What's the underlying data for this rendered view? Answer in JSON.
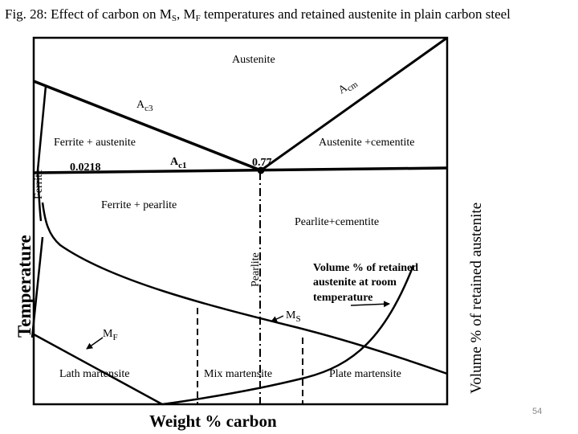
{
  "title": {
    "prefix": "Fig. 28: Effect  of carbon on M",
    "ms_sub": "S",
    "mid": ", M",
    "mf_sub": "F",
    "suffix": " temperatures and retained austenite in plain carbon steel"
  },
  "axes": {
    "x_label": "Weight % carbon",
    "y_label": "Temperature",
    "y2_label": "Volume % of retained austenite"
  },
  "regions": {
    "austenite": "Austenite",
    "ferrite_austenite": "Ferrite + austenite",
    "austenite_cementite": "Austenite +cementite",
    "ferrite_pearlite": "Ferrite + pearlite",
    "pearlite_cementite": "Pearlite+cementite",
    "ferrite": "Ferrite",
    "pearlite": "Pearlite"
  },
  "lines": {
    "acm_main": "A",
    "acm_sub": "cm",
    "ac3_main": "A",
    "ac3_sub": "c3",
    "ac1_main": "A",
    "ac1_sub": "c1",
    "ms_main": "M",
    "ms_sub": "S",
    "mf_main": "M",
    "mf_sub": "F"
  },
  "points": {
    "eutectoid": "0.77",
    "ferrite_limit": "0.0218"
  },
  "annotations": {
    "retained_line1": "Volume % of retained",
    "retained_line2": "austenite at room",
    "retained_line3": "temperature"
  },
  "martensite": {
    "lath": "Lath  martensite",
    "mix": "Mix martensite",
    "plate": "Plate martensite"
  },
  "page_number": "54"
}
